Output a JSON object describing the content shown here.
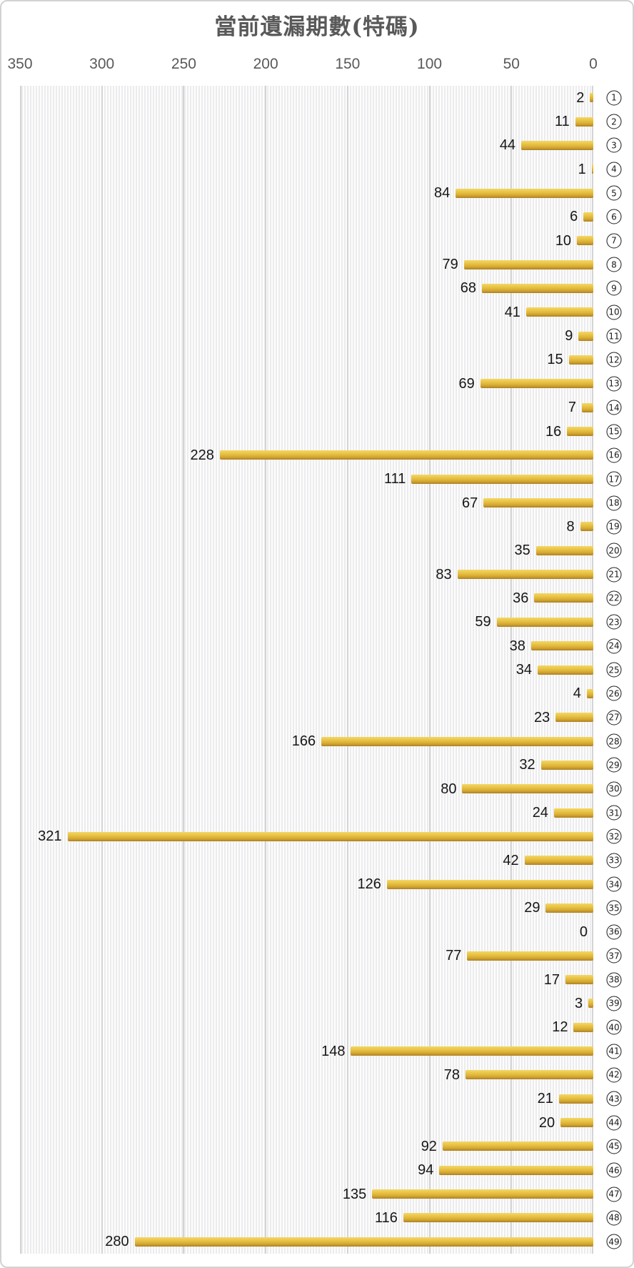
{
  "chart_data": {
    "type": "bar",
    "orientation": "horizontal",
    "title": "當前遺漏期數(特碼)",
    "xlabel": "",
    "ylabel": "",
    "xlim": [
      0,
      350
    ],
    "xticks": [
      350,
      300,
      250,
      200,
      150,
      100,
      50,
      0
    ],
    "axis_reversed": true,
    "grid": true,
    "legend_position": "none",
    "value_labels_shown": true,
    "category_label_style": "circled-number",
    "categories": [
      "1",
      "2",
      "3",
      "4",
      "5",
      "6",
      "7",
      "8",
      "9",
      "10",
      "11",
      "12",
      "13",
      "14",
      "15",
      "16",
      "17",
      "18",
      "19",
      "20",
      "21",
      "22",
      "23",
      "24",
      "25",
      "26",
      "27",
      "28",
      "29",
      "30",
      "31",
      "32",
      "33",
      "34",
      "35",
      "36",
      "37",
      "38",
      "39",
      "40",
      "41",
      "42",
      "43",
      "44",
      "45",
      "46",
      "47",
      "48",
      "49"
    ],
    "values": [
      2,
      11,
      44,
      1,
      84,
      6,
      10,
      79,
      68,
      41,
      9,
      15,
      69,
      7,
      16,
      228,
      111,
      67,
      8,
      35,
      83,
      36,
      59,
      38,
      34,
      4,
      23,
      166,
      32,
      80,
      24,
      321,
      42,
      126,
      29,
      0,
      77,
      17,
      3,
      12,
      148,
      78,
      21,
      20,
      92,
      94,
      135,
      116,
      280
    ],
    "colors": {
      "bar_gold_light": "#f3d765",
      "bar_gold_mid": "#e0b53a",
      "bar_gold_dark": "#ab7f22",
      "title_text": "#595959",
      "axis_tick_text": "#595959",
      "value_label_text": "#161616",
      "gridline": "#d4d4d4",
      "plot_stripe_light": "#fdfdfd",
      "plot_stripe_dark": "#ececee",
      "frame_border": "#d2d2d2",
      "category_circle": "#1a1a1a"
    }
  }
}
